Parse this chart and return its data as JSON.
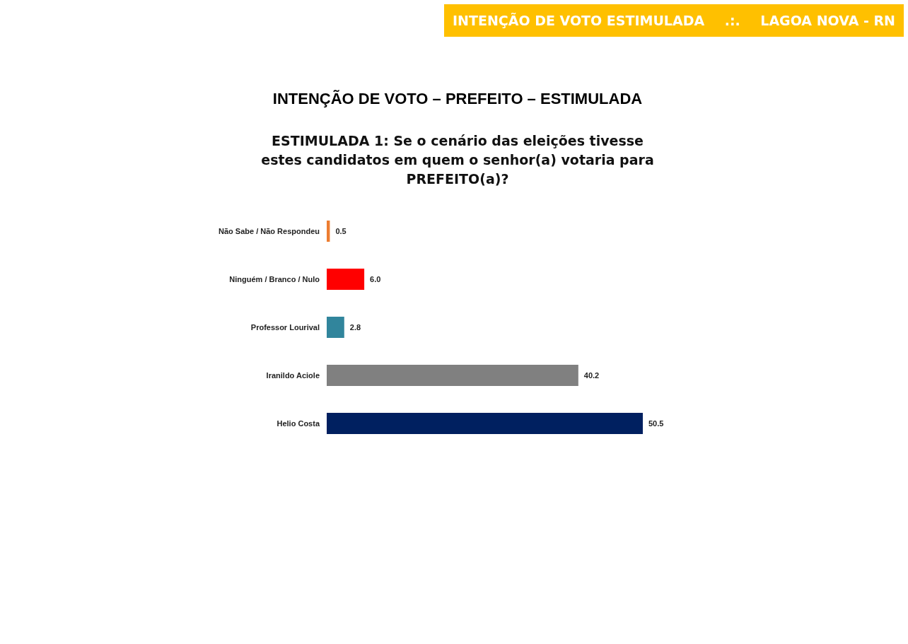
{
  "chart_data": {
    "type": "bar",
    "orientation": "horizontal",
    "title": "INTENÇÃO DE VOTO – PREFEITO – ESTIMULADA",
    "subtitle": "ESTIMULADA 1: Se o cenário das eleições tivesse estes candidatos em quem o senhor(a) votaria para PREFEITO(a)?",
    "annotations": [
      "INTENÇÃO DE VOTO ESTIMULADA",
      ".:.",
      "LAGOA NOVA - RN"
    ],
    "categories": [
      "Não Sabe / Não Respondeu",
      "Ninguém / Branco / Nulo",
      "Professor Lourival",
      "Iranildo Aciole",
      "Helio Costa"
    ],
    "values": [
      0.5,
      6.0,
      2.8,
      40.2,
      50.5
    ],
    "value_labels": [
      "0.5",
      "6.0",
      "2.8",
      "40.2",
      "50.5"
    ],
    "colors": [
      "#ed7d31",
      "#ff0000",
      "#31859c",
      "#808080",
      "#002060"
    ]
  }
}
